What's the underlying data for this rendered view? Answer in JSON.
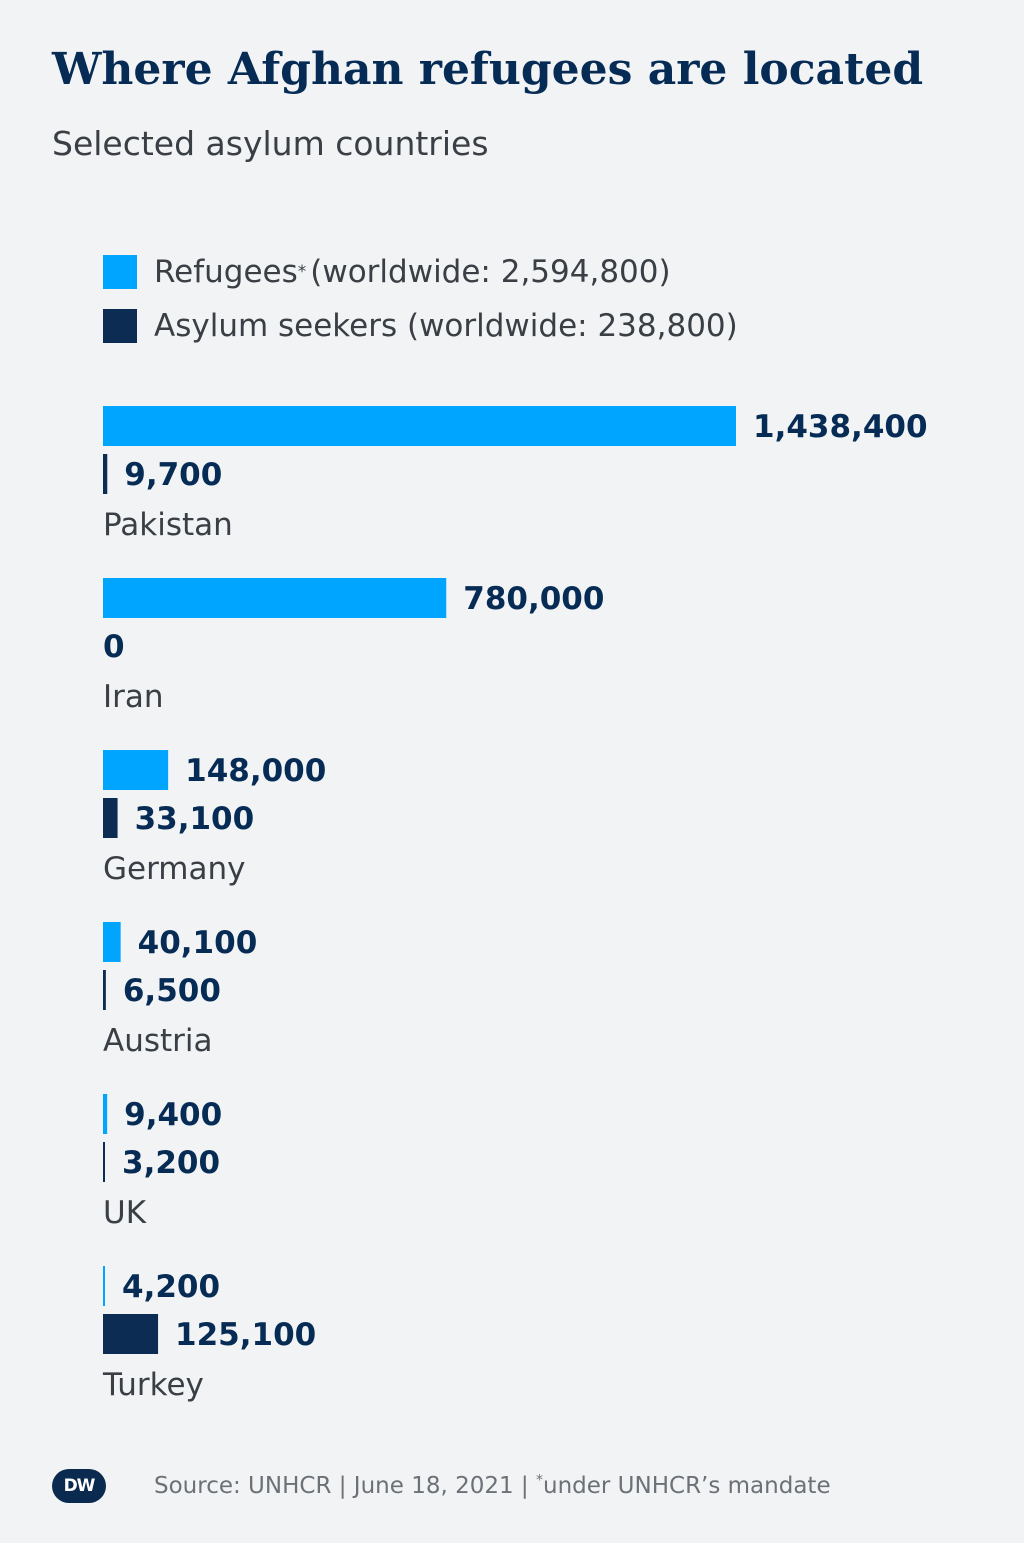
{
  "header": {
    "title": "Where Afghan refugees are located",
    "subtitle": "Selected asylum countries"
  },
  "colors": {
    "refugees": "#00a5ff",
    "asylum_seekers": "#0c2c54"
  },
  "legend": {
    "refugees_label": "Refugees",
    "refugees_marker": "*",
    "refugees_suffix": "(worldwide: 2,594,800)",
    "asylum_label": "Asylum seekers (worldwide: 238,800)"
  },
  "chart_data": {
    "type": "bar",
    "orientation": "horizontal",
    "categories": [
      "Pakistan",
      "Iran",
      "Germany",
      "Austria",
      "UK",
      "Turkey"
    ],
    "series": [
      {
        "name": "Refugees",
        "values": [
          1438400,
          780000,
          148000,
          40100,
          9400,
          4200
        ],
        "labels": [
          "1,438,400",
          "780,000",
          "148,000",
          "40,100",
          "9,400",
          "4,200"
        ]
      },
      {
        "name": "Asylum seekers",
        "values": [
          9700,
          0,
          33100,
          6500,
          3200,
          125100
        ],
        "labels": [
          "9,700",
          "0",
          "33,100",
          "6,500",
          "3,200",
          "125,100"
        ]
      }
    ],
    "grid": false,
    "legend_position": "top-left"
  },
  "footer": {
    "logo": "DW",
    "source_main": "Source: UNHCR | June 18, 2021 | ",
    "source_marker": "*",
    "source_note": "under UNHCR’s mandate"
  }
}
